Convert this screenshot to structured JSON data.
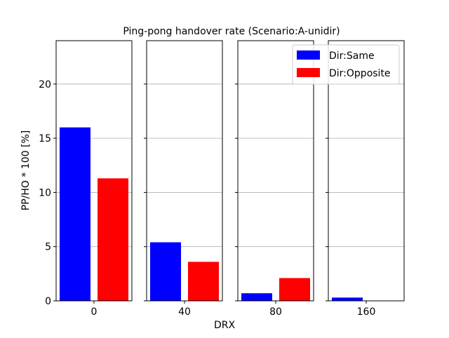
{
  "chart_data": {
    "type": "bar",
    "title": "Ping-pong handover rate (Scenario:A-unidir)",
    "xlabel": "DRX",
    "ylabel": "PP/HO * 100 [%]",
    "ylim": [
      0,
      24
    ],
    "yticks": [
      0,
      5,
      10,
      15,
      20
    ],
    "grid": "y",
    "legend_position": "top-right",
    "categories": [
      "0",
      "40",
      "80",
      "160"
    ],
    "series": [
      {
        "name": "Dir:Same",
        "color": "#0000ff",
        "values": [
          16.0,
          5.4,
          0.7,
          0.3
        ]
      },
      {
        "name": "Dir:Opposite",
        "color": "#ff0000",
        "values": [
          11.3,
          3.6,
          2.1,
          0.0
        ]
      }
    ]
  }
}
